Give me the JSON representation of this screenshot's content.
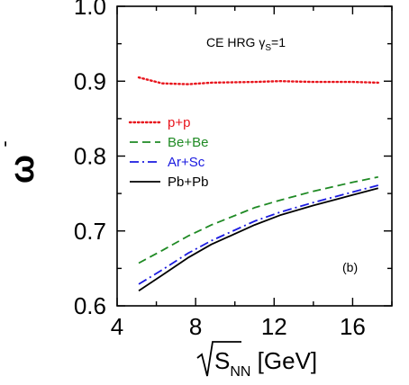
{
  "chart_data": {
    "type": "line",
    "annotation": {
      "text": "CE HRG  γ",
      "sub": "S",
      "tail": "=1"
    },
    "panel_label": "(b)",
    "ylabel": {
      "main": "ω",
      "sup": "-"
    },
    "xlabel": {
      "main": "S",
      "sub": "NN",
      "unit": " [GeV]"
    },
    "xlim": [
      4,
      18
    ],
    "ylim": [
      0.6,
      1.0
    ],
    "xticks": [
      4,
      8,
      12,
      16
    ],
    "yticks": [
      "0.6",
      "0.7",
      "0.8",
      "0.9",
      "1.0"
    ],
    "legend_position": "left",
    "series": [
      {
        "name": "p+p",
        "color": "#e8141c",
        "style": "dotted",
        "x": [
          5.1,
          6.3,
          7.6,
          8.8,
          11.0,
          12.3,
          14.0,
          16.0,
          17.3
        ],
        "y": [
          0.905,
          0.897,
          0.896,
          0.898,
          0.899,
          0.9,
          0.899,
          0.899,
          0.898
        ]
      },
      {
        "name": "Be+Be",
        "color": "#1f8a24",
        "style": "dashed",
        "x": [
          5.1,
          6.3,
          7.6,
          8.8,
          11.0,
          12.3,
          14.0,
          16.0,
          17.3
        ],
        "y": [
          0.657,
          0.674,
          0.693,
          0.708,
          0.731,
          0.741,
          0.753,
          0.765,
          0.772
        ]
      },
      {
        "name": "Ar+Sc",
        "color": "#1a1ae0",
        "style": "dashdot",
        "x": [
          5.1,
          6.3,
          7.6,
          8.8,
          11.0,
          12.3,
          14.0,
          16.0,
          17.3
        ],
        "y": [
          0.629,
          0.648,
          0.67,
          0.687,
          0.713,
          0.725,
          0.738,
          0.752,
          0.761
        ]
      },
      {
        "name": "Pb+Pb",
        "color": "#000000",
        "style": "solid",
        "x": [
          5.1,
          6.3,
          7.6,
          8.8,
          11.0,
          12.3,
          14.0,
          16.0,
          17.3
        ],
        "y": [
          0.62,
          0.641,
          0.664,
          0.682,
          0.708,
          0.721,
          0.734,
          0.748,
          0.757
        ]
      }
    ]
  }
}
